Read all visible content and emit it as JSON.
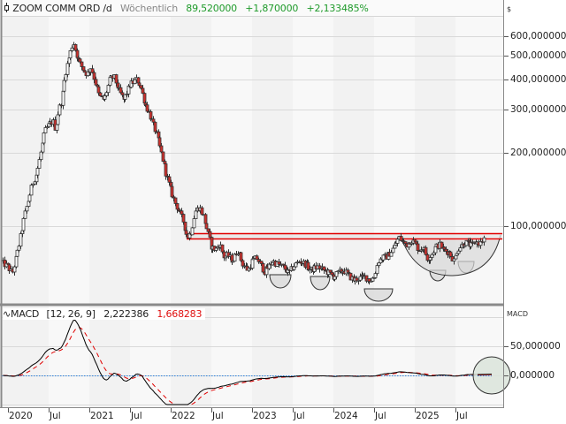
{
  "header": {
    "symbol": "ZOOM COMM ORD /d",
    "period": "Wöchentlich",
    "last": "89,520000",
    "change": "+1,870000",
    "change_pct": "+2,133485%"
  },
  "price_axis": {
    "currency": "$",
    "ticks": [
      {
        "label": "600,000000",
        "value": 600
      },
      {
        "label": "500,000000",
        "value": 500
      },
      {
        "label": "400,000000",
        "value": 400
      },
      {
        "label": "300,000000",
        "value": 300
      },
      {
        "label": "200,000000",
        "value": 200
      },
      {
        "label": "100,000000",
        "value": 100
      }
    ]
  },
  "macd": {
    "label": "MACD",
    "params": "[12, 26, 9]",
    "macd_value": "2,222386",
    "signal_value": "1,668283",
    "axis_title": "MACD",
    "ticks": [
      {
        "label": "50,000000",
        "value": 50
      },
      {
        "label": "0,000000",
        "value": 0
      }
    ]
  },
  "time_axis": {
    "ticks": [
      "2020",
      "Jul",
      "2021",
      "Jul",
      "2022",
      "Jul",
      "2023",
      "Jul",
      "2024",
      "Jul",
      "2025",
      "Jul"
    ]
  },
  "colors": {
    "up_candle": "#ffffff",
    "down_candle": "#d0312d",
    "candle_outline": "#333333",
    "resistance": "#e00000",
    "macd_line": "#000000",
    "signal_line": "#e00000",
    "zero_line": "#2a7fdc",
    "positive": "#1e9a2a"
  },
  "chart_data": [
    {
      "type": "candlestick",
      "title": "ZOOM COMM ORD /d – Wöchentlich",
      "yscale": "log",
      "ylabel": "$",
      "ylim": [
        58,
        640
      ],
      "x": [
        "2020-01",
        "2020-03",
        "2020-05",
        "2020-07",
        "2020-09",
        "2020-10",
        "2020-11",
        "2021-01",
        "2021-02",
        "2021-04",
        "2021-06",
        "2021-08",
        "2021-09",
        "2021-11",
        "2022-01",
        "2022-03",
        "2022-05",
        "2022-07",
        "2022-09",
        "2022-11",
        "2023-01",
        "2023-03",
        "2023-05",
        "2023-07",
        "2023-09",
        "2023-11",
        "2024-01",
        "2024-03",
        "2024-05",
        "2024-07",
        "2024-09",
        "2024-11",
        "2025-01",
        "2025-03",
        "2025-05",
        "2025-07",
        "2025-09",
        "2025-11"
      ],
      "close": [
        70,
        68,
        110,
        170,
        240,
        300,
        480,
        560,
        420,
        380,
        330,
        400,
        390,
        290,
        180,
        130,
        100,
        120,
        110,
        77,
        70,
        72,
        67,
        70,
        66,
        65,
        64,
        61,
        62,
        60,
        73,
        80,
        86,
        78,
        75,
        82,
        84,
        89.52
      ],
      "horizontal_lines": [
        {
          "value": 92,
          "label": "resistance upper"
        },
        {
          "value": 88,
          "label": "resistance lower"
        }
      ],
      "annotations": [
        "rounded bottom 2023-Q1",
        "rounded bottom 2023-Q3",
        "rounded bottom 2024-Q3",
        "cup base 2024-11 to 2025-11"
      ]
    },
    {
      "type": "line",
      "title": "MACD [12, 26, 9]",
      "series": [
        {
          "name": "MACD",
          "values": [
            0,
            3,
            18,
            35,
            55,
            85,
            40,
            5,
            15,
            -10,
            -30,
            -45,
            -25,
            -12,
            -5,
            -2,
            0,
            0,
            0,
            -1,
            6,
            3,
            -2,
            0,
            2.22
          ]
        },
        {
          "name": "Signal",
          "values": [
            0,
            1,
            14,
            30,
            48,
            75,
            50,
            10,
            12,
            -5,
            -25,
            -42,
            -28,
            -14,
            -6,
            -3,
            0,
            0,
            0,
            -1,
            5,
            3,
            -1,
            0,
            1.67
          ]
        }
      ],
      "ylim": [
        -55,
        95
      ],
      "yticks": [
        0,
        50
      ],
      "annotations": [
        "circle highlight at latest MACD crossover"
      ]
    }
  ]
}
